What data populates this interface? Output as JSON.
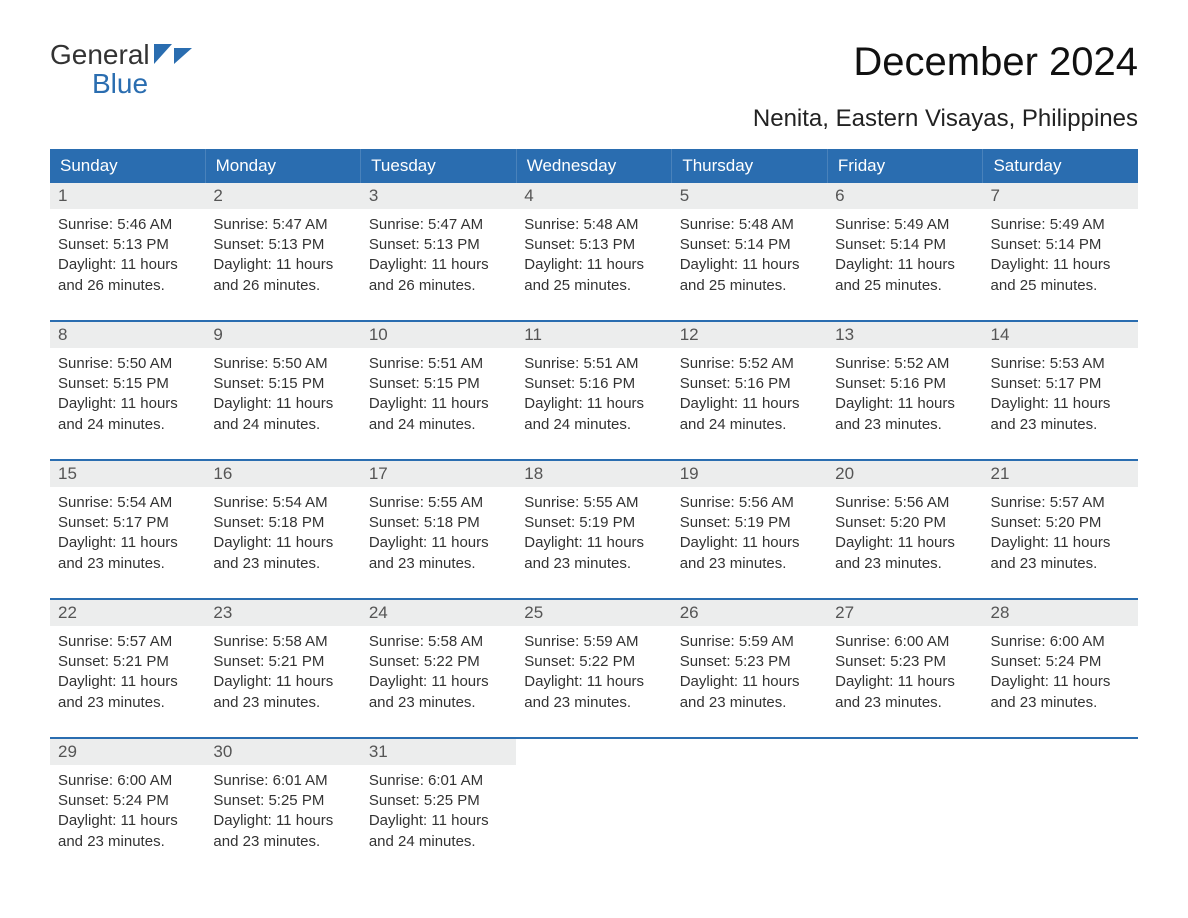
{
  "logo": {
    "line1": "General",
    "line2": "Blue"
  },
  "title": "December 2024",
  "subtitle": "Nenita, Eastern Visayas, Philippines",
  "colors": {
    "header_bg": "#2a6db0",
    "header_text": "#ffffff",
    "daynum_bg": "#eceded",
    "daynum_text": "#555555",
    "body_text": "#333333",
    "logo_blue": "#2a6db0",
    "page_bg": "#ffffff"
  },
  "typography": {
    "title_fontsize": 40,
    "subtitle_fontsize": 24,
    "dayheader_fontsize": 17,
    "body_fontsize": 15,
    "font_family": "Arial"
  },
  "calendar": {
    "type": "table",
    "columns": [
      "Sunday",
      "Monday",
      "Tuesday",
      "Wednesday",
      "Thursday",
      "Friday",
      "Saturday"
    ],
    "first_day_index": 0,
    "days": [
      {
        "n": 1,
        "sunrise": "5:46 AM",
        "sunset": "5:13 PM",
        "daylight": "11 hours and 26 minutes."
      },
      {
        "n": 2,
        "sunrise": "5:47 AM",
        "sunset": "5:13 PM",
        "daylight": "11 hours and 26 minutes."
      },
      {
        "n": 3,
        "sunrise": "5:47 AM",
        "sunset": "5:13 PM",
        "daylight": "11 hours and 26 minutes."
      },
      {
        "n": 4,
        "sunrise": "5:48 AM",
        "sunset": "5:13 PM",
        "daylight": "11 hours and 25 minutes."
      },
      {
        "n": 5,
        "sunrise": "5:48 AM",
        "sunset": "5:14 PM",
        "daylight": "11 hours and 25 minutes."
      },
      {
        "n": 6,
        "sunrise": "5:49 AM",
        "sunset": "5:14 PM",
        "daylight": "11 hours and 25 minutes."
      },
      {
        "n": 7,
        "sunrise": "5:49 AM",
        "sunset": "5:14 PM",
        "daylight": "11 hours and 25 minutes."
      },
      {
        "n": 8,
        "sunrise": "5:50 AM",
        "sunset": "5:15 PM",
        "daylight": "11 hours and 24 minutes."
      },
      {
        "n": 9,
        "sunrise": "5:50 AM",
        "sunset": "5:15 PM",
        "daylight": "11 hours and 24 minutes."
      },
      {
        "n": 10,
        "sunrise": "5:51 AM",
        "sunset": "5:15 PM",
        "daylight": "11 hours and 24 minutes."
      },
      {
        "n": 11,
        "sunrise": "5:51 AM",
        "sunset": "5:16 PM",
        "daylight": "11 hours and 24 minutes."
      },
      {
        "n": 12,
        "sunrise": "5:52 AM",
        "sunset": "5:16 PM",
        "daylight": "11 hours and 24 minutes."
      },
      {
        "n": 13,
        "sunrise": "5:52 AM",
        "sunset": "5:16 PM",
        "daylight": "11 hours and 23 minutes."
      },
      {
        "n": 14,
        "sunrise": "5:53 AM",
        "sunset": "5:17 PM",
        "daylight": "11 hours and 23 minutes."
      },
      {
        "n": 15,
        "sunrise": "5:54 AM",
        "sunset": "5:17 PM",
        "daylight": "11 hours and 23 minutes."
      },
      {
        "n": 16,
        "sunrise": "5:54 AM",
        "sunset": "5:18 PM",
        "daylight": "11 hours and 23 minutes."
      },
      {
        "n": 17,
        "sunrise": "5:55 AM",
        "sunset": "5:18 PM",
        "daylight": "11 hours and 23 minutes."
      },
      {
        "n": 18,
        "sunrise": "5:55 AM",
        "sunset": "5:19 PM",
        "daylight": "11 hours and 23 minutes."
      },
      {
        "n": 19,
        "sunrise": "5:56 AM",
        "sunset": "5:19 PM",
        "daylight": "11 hours and 23 minutes."
      },
      {
        "n": 20,
        "sunrise": "5:56 AM",
        "sunset": "5:20 PM",
        "daylight": "11 hours and 23 minutes."
      },
      {
        "n": 21,
        "sunrise": "5:57 AM",
        "sunset": "5:20 PM",
        "daylight": "11 hours and 23 minutes."
      },
      {
        "n": 22,
        "sunrise": "5:57 AM",
        "sunset": "5:21 PM",
        "daylight": "11 hours and 23 minutes."
      },
      {
        "n": 23,
        "sunrise": "5:58 AM",
        "sunset": "5:21 PM",
        "daylight": "11 hours and 23 minutes."
      },
      {
        "n": 24,
        "sunrise": "5:58 AM",
        "sunset": "5:22 PM",
        "daylight": "11 hours and 23 minutes."
      },
      {
        "n": 25,
        "sunrise": "5:59 AM",
        "sunset": "5:22 PM",
        "daylight": "11 hours and 23 minutes."
      },
      {
        "n": 26,
        "sunrise": "5:59 AM",
        "sunset": "5:23 PM",
        "daylight": "11 hours and 23 minutes."
      },
      {
        "n": 27,
        "sunrise": "6:00 AM",
        "sunset": "5:23 PM",
        "daylight": "11 hours and 23 minutes."
      },
      {
        "n": 28,
        "sunrise": "6:00 AM",
        "sunset": "5:24 PM",
        "daylight": "11 hours and 23 minutes."
      },
      {
        "n": 29,
        "sunrise": "6:00 AM",
        "sunset": "5:24 PM",
        "daylight": "11 hours and 23 minutes."
      },
      {
        "n": 30,
        "sunrise": "6:01 AM",
        "sunset": "5:25 PM",
        "daylight": "11 hours and 23 minutes."
      },
      {
        "n": 31,
        "sunrise": "6:01 AM",
        "sunset": "5:25 PM",
        "daylight": "11 hours and 24 minutes."
      }
    ],
    "labels": {
      "sunrise_prefix": "Sunrise: ",
      "sunset_prefix": "Sunset: ",
      "daylight_prefix": "Daylight: "
    }
  }
}
